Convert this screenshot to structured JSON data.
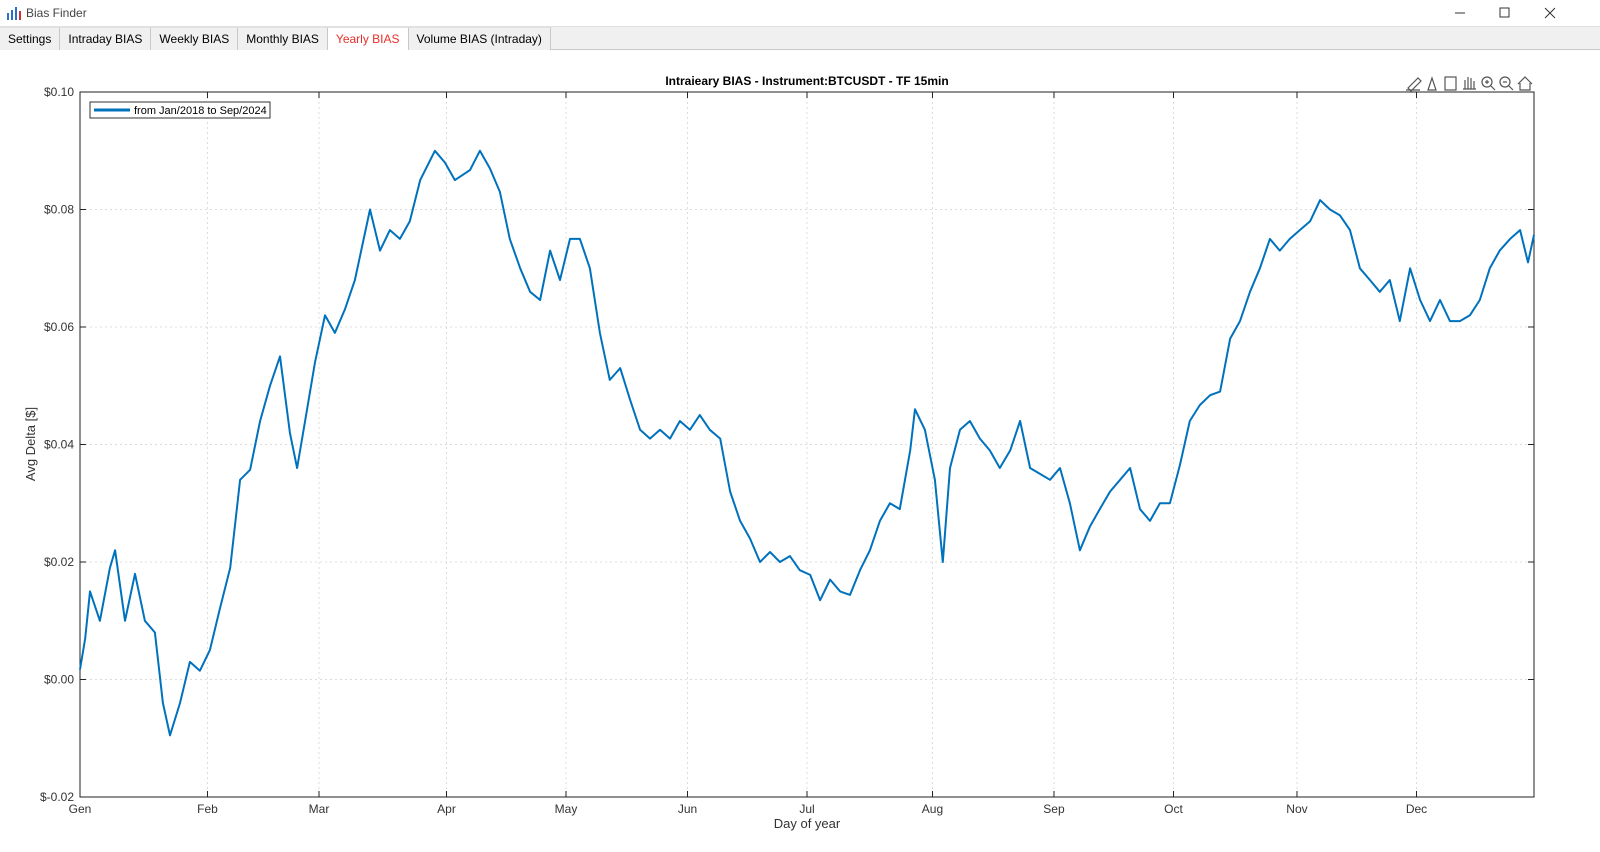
{
  "window": {
    "title": "Bias Finder"
  },
  "tabs": [
    {
      "label": "Settings",
      "active": false
    },
    {
      "label": "Intraday BIAS",
      "active": false
    },
    {
      "label": "Weekly BIAS",
      "active": false
    },
    {
      "label": "Monthly BIAS",
      "active": false
    },
    {
      "label": "Yearly BIAS",
      "active": true
    },
    {
      "label": "Volume BIAS (Intraday)",
      "active": false
    }
  ],
  "chart_data": {
    "type": "line",
    "title": "Intraieary BIAS - Instrument:BTCUSDT - TF 15min",
    "xlabel": "Day of year",
    "ylabel": "Avg Delta [$]",
    "x": [
      1,
      2.3,
      3.5,
      6,
      8.5,
      9.8,
      12.3,
      14.8,
      17.3,
      19.8,
      21.8,
      23.6,
      26.1,
      28.6,
      31.1,
      33.6,
      36.1,
      38.7,
      41.2,
      43.7,
      46.2,
      48.7,
      51.2,
      53.7,
      55.5,
      57.5,
      60,
      62.5,
      65,
      67.5,
      70,
      73.8,
      76.3,
      78.8,
      81.3,
      83.8,
      86.4,
      90.1,
      92.6,
      95.1,
      98.9,
      101.4,
      103.9,
      106.4,
      108.9,
      111.5,
      114,
      116.5,
      119,
      121.5,
      124,
      126.5,
      129,
      131.5,
      134,
      136.6,
      139.1,
      141.6,
      144.1,
      146.6,
      149.1,
      151.6,
      154.1,
      156.6,
      159.1,
      161.7,
      164.2,
      166.7,
      169.2,
      171.7,
      174.2,
      176.7,
      179.2,
      181.7,
      184.3,
      186.8,
      189.3,
      191.8,
      194.3,
      196.8,
      199.3,
      201.8,
      204.3,
      206.8,
      209.4,
      210.6,
      213.1,
      215.6,
      217.6,
      219.4,
      221.9,
      224.4,
      226.9,
      229.4,
      231.9,
      234.5,
      237,
      239.5,
      242,
      244.5,
      247,
      249.5,
      252,
      254.5,
      257,
      259.6,
      262.1,
      264.6,
      267.1,
      269.6,
      272.1,
      274.6,
      277.1,
      279.6,
      282.1,
      284.7,
      287.2,
      289.7,
      292.2,
      294.7,
      297.2,
      299.7,
      302.2,
      304.7,
      307.2,
      309.8,
      312.3,
      314.8,
      317.3,
      319.8,
      322.3,
      324.8,
      327.3,
      329.8,
      332.3,
      334.9,
      337.4,
      339.9,
      342.4,
      344.9,
      347.4,
      349.9,
      352.4,
      354.9,
      357.4,
      360,
      362.5,
      364.5,
      366
    ],
    "series": [
      {
        "name": "from Jan/2018 to Sep/2024",
        "color": "#0072bd",
        "values": [
          0.0017,
          0.007,
          0.015,
          0.01,
          0.019,
          0.022,
          0.01,
          0.018,
          0.01,
          0.008,
          -0.004,
          -0.0095,
          -0.004,
          0.003,
          0.0015,
          0.005,
          0.012,
          0.019,
          0.034,
          0.0357,
          0.044,
          0.05,
          0.055,
          0.042,
          0.036,
          0.044,
          0.054,
          0.062,
          0.059,
          0.063,
          0.068,
          0.08,
          0.073,
          0.0765,
          0.075,
          0.078,
          0.085,
          0.09,
          0.088,
          0.085,
          0.0867,
          0.09,
          0.087,
          0.083,
          0.075,
          0.07,
          0.066,
          0.0646,
          0.073,
          0.068,
          0.075,
          0.075,
          0.07,
          0.059,
          0.051,
          0.053,
          0.0476,
          0.0425,
          0.041,
          0.0425,
          0.041,
          0.044,
          0.0425,
          0.045,
          0.0425,
          0.041,
          0.032,
          0.027,
          0.024,
          0.02,
          0.0217,
          0.02,
          0.021,
          0.0186,
          0.0178,
          0.0135,
          0.017,
          0.015,
          0.0144,
          0.0186,
          0.022,
          0.027,
          0.03,
          0.029,
          0.039,
          0.046,
          0.0425,
          0.034,
          0.02,
          0.036,
          0.0425,
          0.044,
          0.041,
          0.039,
          0.036,
          0.039,
          0.044,
          0.036,
          0.035,
          0.034,
          0.036,
          0.03,
          0.022,
          0.026,
          0.029,
          0.032,
          0.034,
          0.036,
          0.029,
          0.027,
          0.03,
          0.03,
          0.0365,
          0.044,
          0.0467,
          0.0484,
          0.049,
          0.058,
          0.061,
          0.066,
          0.07,
          0.075,
          0.073,
          0.075,
          0.0765,
          0.078,
          0.0816,
          0.08,
          0.079,
          0.0765,
          0.07,
          0.068,
          0.066,
          0.068,
          0.061,
          0.07,
          0.0646,
          0.061,
          0.0646,
          0.061,
          0.061,
          0.062,
          0.0646,
          0.07,
          0.073,
          0.075,
          0.0765,
          0.071,
          0.0757
        ]
      }
    ],
    "xlim": [
      1,
      366
    ],
    "ylim": [
      -0.02,
      0.1
    ],
    "xticks": [
      {
        "value": 1,
        "label": "Gen"
      },
      {
        "value": 33,
        "label": "Feb"
      },
      {
        "value": 61,
        "label": "Mar"
      },
      {
        "value": 93,
        "label": "Apr"
      },
      {
        "value": 123,
        "label": "May"
      },
      {
        "value": 153.5,
        "label": "Jun"
      },
      {
        "value": 183.5,
        "label": "Jul"
      },
      {
        "value": 215,
        "label": "Aug"
      },
      {
        "value": 245.5,
        "label": "Sep"
      },
      {
        "value": 275.5,
        "label": "Oct"
      },
      {
        "value": 306.5,
        "label": "Nov"
      },
      {
        "value": 336.5,
        "label": "Dec"
      }
    ],
    "yticks": [
      {
        "value": -0.02,
        "label": "$-0.02"
      },
      {
        "value": 0,
        "label": "$0.00"
      },
      {
        "value": 0.02,
        "label": "$0.02"
      },
      {
        "value": 0.04,
        "label": "$0.04"
      },
      {
        "value": 0.06,
        "label": "$0.06"
      },
      {
        "value": 0.08,
        "label": "$0.08"
      },
      {
        "value": 0.1,
        "label": "$0.10"
      }
    ],
    "grid": true,
    "legend": "upper left"
  }
}
